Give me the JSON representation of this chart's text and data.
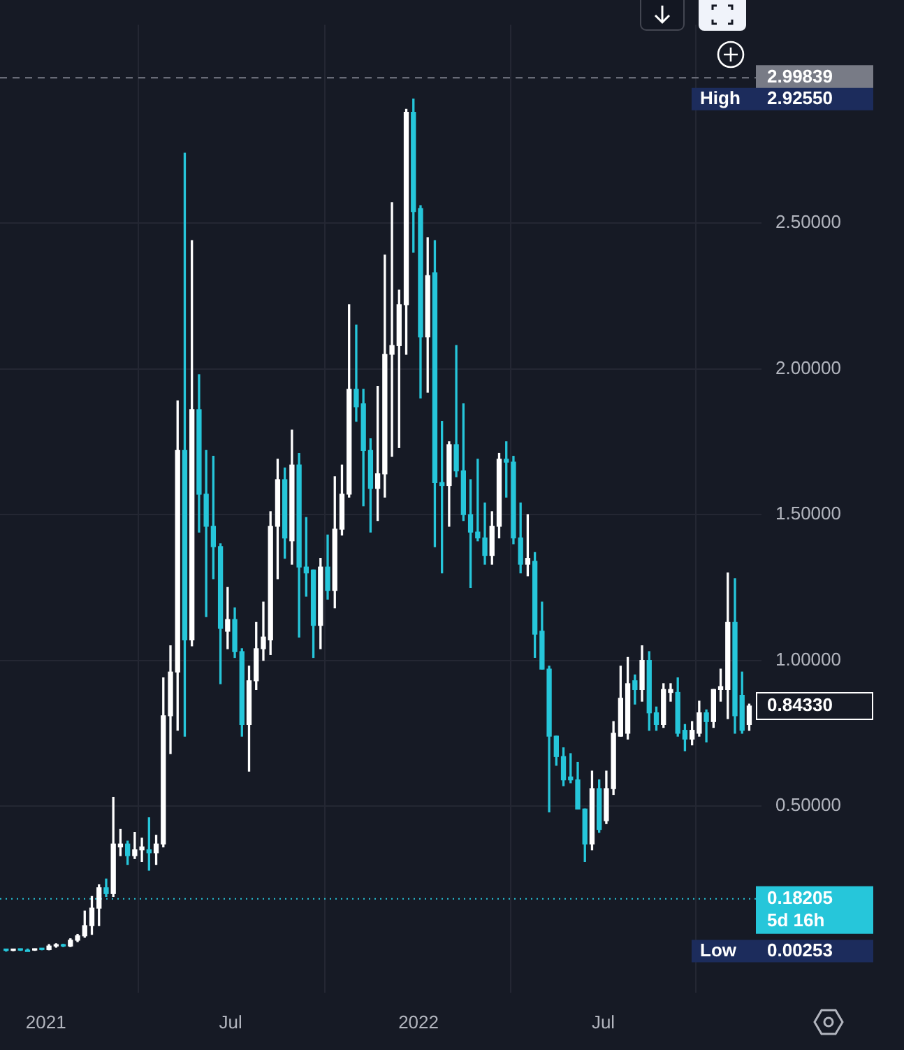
{
  "chart_data": {
    "type": "candlestick",
    "x": [
      "2020-11-23",
      "2020-11-30",
      "2020-12-07",
      "2020-12-14",
      "2020-12-21",
      "2020-12-28",
      "2021-01-04",
      "2021-01-11",
      "2021-01-18",
      "2021-01-25",
      "2021-02-01",
      "2021-02-08",
      "2021-02-15",
      "2021-02-22",
      "2021-03-01",
      "2021-03-08",
      "2021-03-15",
      "2021-03-22",
      "2021-03-29",
      "2021-04-05",
      "2021-04-12",
      "2021-04-19",
      "2021-04-26",
      "2021-05-03",
      "2021-05-10",
      "2021-05-17",
      "2021-05-24",
      "2021-05-31",
      "2021-06-07",
      "2021-06-14",
      "2021-06-21",
      "2021-06-28",
      "2021-07-05",
      "2021-07-12",
      "2021-07-19",
      "2021-07-26",
      "2021-08-02",
      "2021-08-09",
      "2021-08-16",
      "2021-08-23",
      "2021-08-30",
      "2021-09-06",
      "2021-09-13",
      "2021-09-20",
      "2021-09-27",
      "2021-10-04",
      "2021-10-11",
      "2021-10-18",
      "2021-10-25",
      "2021-11-01",
      "2021-11-08",
      "2021-11-15",
      "2021-11-22",
      "2021-11-29",
      "2021-12-06",
      "2021-12-13",
      "2021-12-20",
      "2021-12-27",
      "2022-01-03",
      "2022-01-10",
      "2022-01-17",
      "2022-01-24",
      "2022-01-31",
      "2022-02-07",
      "2022-02-14",
      "2022-02-21",
      "2022-02-28",
      "2022-03-07",
      "2022-03-14",
      "2022-03-21",
      "2022-03-28",
      "2022-04-04",
      "2022-04-11",
      "2022-04-18",
      "2022-04-25",
      "2022-05-02",
      "2022-05-09",
      "2022-05-16",
      "2022-05-23",
      "2022-05-30",
      "2022-06-06",
      "2022-06-13",
      "2022-06-20",
      "2022-06-27",
      "2022-07-04",
      "2022-07-11",
      "2022-07-18",
      "2022-07-25",
      "2022-08-01",
      "2022-08-08",
      "2022-08-15",
      "2022-08-22",
      "2022-08-29",
      "2022-09-05",
      "2022-09-12",
      "2022-09-19",
      "2022-09-26",
      "2022-10-03",
      "2022-10-10",
      "2022-10-17",
      "2022-10-24",
      "2022-10-31",
      "2022-11-07",
      "2022-11-14",
      "2022-11-21"
    ],
    "ohlc": [
      [
        0.006,
        0.008,
        0.00253,
        0.005
      ],
      [
        0.005,
        0.008,
        0.004,
        0.007
      ],
      [
        0.007,
        0.009,
        0.005,
        0.006
      ],
      [
        0.006,
        0.008,
        0.005,
        0.006
      ],
      [
        0.006,
        0.01,
        0.005,
        0.009
      ],
      [
        0.009,
        0.011,
        0.007,
        0.008
      ],
      [
        0.008,
        0.025,
        0.007,
        0.02
      ],
      [
        0.02,
        0.028,
        0.016,
        0.022
      ],
      [
        0.022,
        0.026,
        0.018,
        0.02
      ],
      [
        0.02,
        0.045,
        0.018,
        0.04
      ],
      [
        0.04,
        0.06,
        0.035,
        0.055
      ],
      [
        0.055,
        0.14,
        0.05,
        0.09
      ],
      [
        0.09,
        0.19,
        0.06,
        0.15
      ],
      [
        0.15,
        0.23,
        0.09,
        0.22
      ],
      [
        0.22,
        0.25,
        0.19,
        0.2
      ],
      [
        0.2,
        0.53,
        0.19,
        0.37
      ],
      [
        0.36,
        0.42,
        0.33,
        0.37
      ],
      [
        0.37,
        0.38,
        0.3,
        0.33
      ],
      [
        0.33,
        0.41,
        0.32,
        0.35
      ],
      [
        0.35,
        0.39,
        0.31,
        0.36
      ],
      [
        0.35,
        0.46,
        0.28,
        0.34
      ],
      [
        0.34,
        0.4,
        0.3,
        0.37
      ],
      [
        0.37,
        0.94,
        0.36,
        0.81
      ],
      [
        0.81,
        1.05,
        0.68,
        0.96
      ],
      [
        0.96,
        1.89,
        0.76,
        1.72
      ],
      [
        1.72,
        2.74,
        0.74,
        1.07
      ],
      [
        1.07,
        2.44,
        1.05,
        1.86
      ],
      [
        1.86,
        1.98,
        1.44,
        1.57
      ],
      [
        1.57,
        1.72,
        1.15,
        1.46
      ],
      [
        1.46,
        1.7,
        1.28,
        1.39
      ],
      [
        1.39,
        1.4,
        0.92,
        1.11
      ],
      [
        1.1,
        1.25,
        1.04,
        1.14
      ],
      [
        1.14,
        1.18,
        1.01,
        1.03
      ],
      [
        1.03,
        1.04,
        0.74,
        0.78
      ],
      [
        0.78,
        0.98,
        0.62,
        0.93
      ],
      [
        0.93,
        1.13,
        0.9,
        1.04
      ],
      [
        1.04,
        1.2,
        1.0,
        1.08
      ],
      [
        1.07,
        1.51,
        1.02,
        1.46
      ],
      [
        1.46,
        1.69,
        1.28,
        1.62
      ],
      [
        1.62,
        1.66,
        1.35,
        1.42
      ],
      [
        1.41,
        1.79,
        1.33,
        1.67
      ],
      [
        1.67,
        1.71,
        1.08,
        1.32
      ],
      [
        1.32,
        1.49,
        1.22,
        1.3
      ],
      [
        1.31,
        1.31,
        1.01,
        1.12
      ],
      [
        1.12,
        1.35,
        1.04,
        1.32
      ],
      [
        1.32,
        1.43,
        1.21,
        1.24
      ],
      [
        1.24,
        1.63,
        1.18,
        1.45
      ],
      [
        1.45,
        1.67,
        1.43,
        1.57
      ],
      [
        1.57,
        2.22,
        1.56,
        1.93
      ],
      [
        1.93,
        2.15,
        1.82,
        1.87
      ],
      [
        1.88,
        1.93,
        1.53,
        1.72
      ],
      [
        1.72,
        1.76,
        1.44,
        1.59
      ],
      [
        1.59,
        1.94,
        1.48,
        1.64
      ],
      [
        1.64,
        2.39,
        1.56,
        2.05
      ],
      [
        2.05,
        2.57,
        1.7,
        2.08
      ],
      [
        2.08,
        2.27,
        1.73,
        2.22
      ],
      [
        2.22,
        2.89,
        2.05,
        2.88
      ],
      [
        2.88,
        2.9255,
        2.4,
        2.54
      ],
      [
        2.55,
        2.56,
        1.9,
        2.11
      ],
      [
        2.11,
        2.45,
        1.92,
        2.32
      ],
      [
        2.33,
        2.44,
        1.39,
        1.61
      ],
      [
        1.61,
        1.82,
        1.3,
        1.6
      ],
      [
        1.6,
        1.75,
        1.46,
        1.74
      ],
      [
        1.74,
        2.08,
        1.63,
        1.65
      ],
      [
        1.65,
        1.88,
        1.48,
        1.5
      ],
      [
        1.5,
        1.62,
        1.25,
        1.44
      ],
      [
        1.44,
        1.69,
        1.41,
        1.42
      ],
      [
        1.42,
        1.54,
        1.33,
        1.36
      ],
      [
        1.36,
        1.51,
        1.33,
        1.46
      ],
      [
        1.46,
        1.71,
        1.42,
        1.69
      ],
      [
        1.69,
        1.75,
        1.56,
        1.68
      ],
      [
        1.68,
        1.7,
        1.4,
        1.42
      ],
      [
        1.42,
        1.54,
        1.3,
        1.33
      ],
      [
        1.33,
        1.5,
        1.29,
        1.35
      ],
      [
        1.34,
        1.37,
        1.01,
        1.09
      ],
      [
        1.1,
        1.2,
        0.97,
        0.97
      ],
      [
        0.97,
        0.98,
        0.48,
        0.74
      ],
      [
        0.74,
        0.74,
        0.64,
        0.67
      ],
      [
        0.67,
        0.7,
        0.57,
        0.59
      ],
      [
        0.6,
        0.68,
        0.58,
        0.59
      ],
      [
        0.59,
        0.65,
        0.49,
        0.49
      ],
      [
        0.49,
        0.49,
        0.31,
        0.37
      ],
      [
        0.37,
        0.62,
        0.35,
        0.56
      ],
      [
        0.56,
        0.59,
        0.41,
        0.42
      ],
      [
        0.45,
        0.62,
        0.44,
        0.56
      ],
      [
        0.56,
        0.79,
        0.54,
        0.75
      ],
      [
        0.74,
        0.98,
        0.74,
        0.87
      ],
      [
        0.75,
        1.01,
        0.73,
        0.92
      ],
      [
        0.93,
        0.95,
        0.85,
        0.9
      ],
      [
        0.9,
        1.05,
        0.86,
        1.0
      ],
      [
        1.0,
        1.03,
        0.76,
        0.82
      ],
      [
        0.82,
        0.84,
        0.76,
        0.78
      ],
      [
        0.78,
        0.92,
        0.77,
        0.9
      ],
      [
        0.89,
        0.92,
        0.86,
        0.9
      ],
      [
        0.89,
        0.94,
        0.74,
        0.75
      ],
      [
        0.76,
        0.78,
        0.69,
        0.73
      ],
      [
        0.73,
        0.79,
        0.71,
        0.76
      ],
      [
        0.75,
        0.86,
        0.74,
        0.82
      ],
      [
        0.82,
        0.83,
        0.72,
        0.79
      ],
      [
        0.79,
        0.9,
        0.77,
        0.9
      ],
      [
        0.9,
        0.97,
        0.86,
        0.91
      ],
      [
        0.9,
        1.3,
        0.8,
        1.13
      ],
      [
        1.13,
        1.28,
        0.75,
        0.81
      ],
      [
        0.88,
        0.96,
        0.75,
        0.76
      ],
      [
        0.78,
        0.85,
        0.76,
        0.8433
      ]
    ],
    "colors": [
      "#26c6da",
      "#ffffff",
      "#26c6da",
      "#26c6da",
      "#ffffff",
      "#26c6da",
      "#ffffff",
      "#ffffff",
      "#26c6da",
      "#ffffff",
      "#ffffff",
      "#ffffff",
      "#ffffff",
      "#ffffff",
      "#26c6da",
      "#ffffff",
      "#ffffff",
      "#26c6da",
      "#ffffff",
      "#ffffff",
      "#26c6da",
      "#ffffff",
      "#ffffff",
      "#ffffff",
      "#ffffff",
      "#26c6da",
      "#ffffff",
      "#26c6da",
      "#26c6da",
      "#26c6da",
      "#26c6da",
      "#ffffff",
      "#26c6da",
      "#26c6da",
      "#ffffff",
      "#ffffff",
      "#ffffff",
      "#ffffff",
      "#ffffff",
      "#26c6da",
      "#ffffff",
      "#26c6da",
      "#26c6da",
      "#26c6da",
      "#ffffff",
      "#26c6da",
      "#ffffff",
      "#ffffff",
      "#ffffff",
      "#26c6da",
      "#26c6da",
      "#26c6da",
      "#ffffff",
      "#ffffff",
      "#ffffff",
      "#ffffff",
      "#ffffff",
      "#26c6da",
      "#26c6da",
      "#ffffff",
      "#26c6da",
      "#26c6da",
      "#ffffff",
      "#26c6da",
      "#26c6da",
      "#26c6da",
      "#26c6da",
      "#26c6da",
      "#ffffff",
      "#ffffff",
      "#26c6da",
      "#26c6da",
      "#26c6da",
      "#ffffff",
      "#26c6da",
      "#26c6da",
      "#26c6da",
      "#26c6da",
      "#26c6da",
      "#26c6da",
      "#26c6da",
      "#26c6da",
      "#ffffff",
      "#26c6da",
      "#ffffff",
      "#ffffff",
      "#ffffff",
      "#ffffff",
      "#26c6da",
      "#ffffff",
      "#26c6da",
      "#26c6da",
      "#ffffff",
      "#ffffff",
      "#26c6da",
      "#26c6da",
      "#ffffff",
      "#ffffff",
      "#26c6da",
      "#ffffff",
      "#ffffff",
      "#ffffff",
      "#26c6da",
      "#26c6da",
      "#ffffff"
    ],
    "xlim": [
      "2020-11-17",
      "2022-12-03"
    ],
    "xticks": [
      {
        "value": "2021-01-01",
        "label": "2021"
      },
      {
        "value": "2021-07-01",
        "label": "Jul"
      },
      {
        "value": "2022-01-01",
        "label": "2022"
      },
      {
        "value": "2022-07-01",
        "label": "Jul"
      }
    ],
    "ylim": [
      -0.14,
      3.18
    ],
    "yticks": [
      {
        "value": 0.5,
        "label": "0.50000"
      },
      {
        "value": 1.0,
        "label": "1.00000"
      },
      {
        "value": 1.5,
        "label": "1.50000"
      },
      {
        "value": 2.0,
        "label": "2.00000"
      },
      {
        "value": 2.5,
        "label": "2.50000"
      }
    ],
    "grid": true,
    "ref_lines": [
      {
        "axis": "y",
        "value": 2.99839,
        "label": "2.99839",
        "color": "#787b86",
        "line_style": "dashed"
      },
      {
        "axis": "y",
        "value": 0.18205,
        "label": "0.18205\n5d 16h",
        "color": "#26c6da",
        "line_style": "dotted"
      }
    ],
    "annotations": [
      "High",
      "2.92550",
      "Low",
      "0.00253",
      {
        "text": "0.84330",
        "x": "2022-11-21",
        "y": 0.8433
      }
    ]
  }
}
